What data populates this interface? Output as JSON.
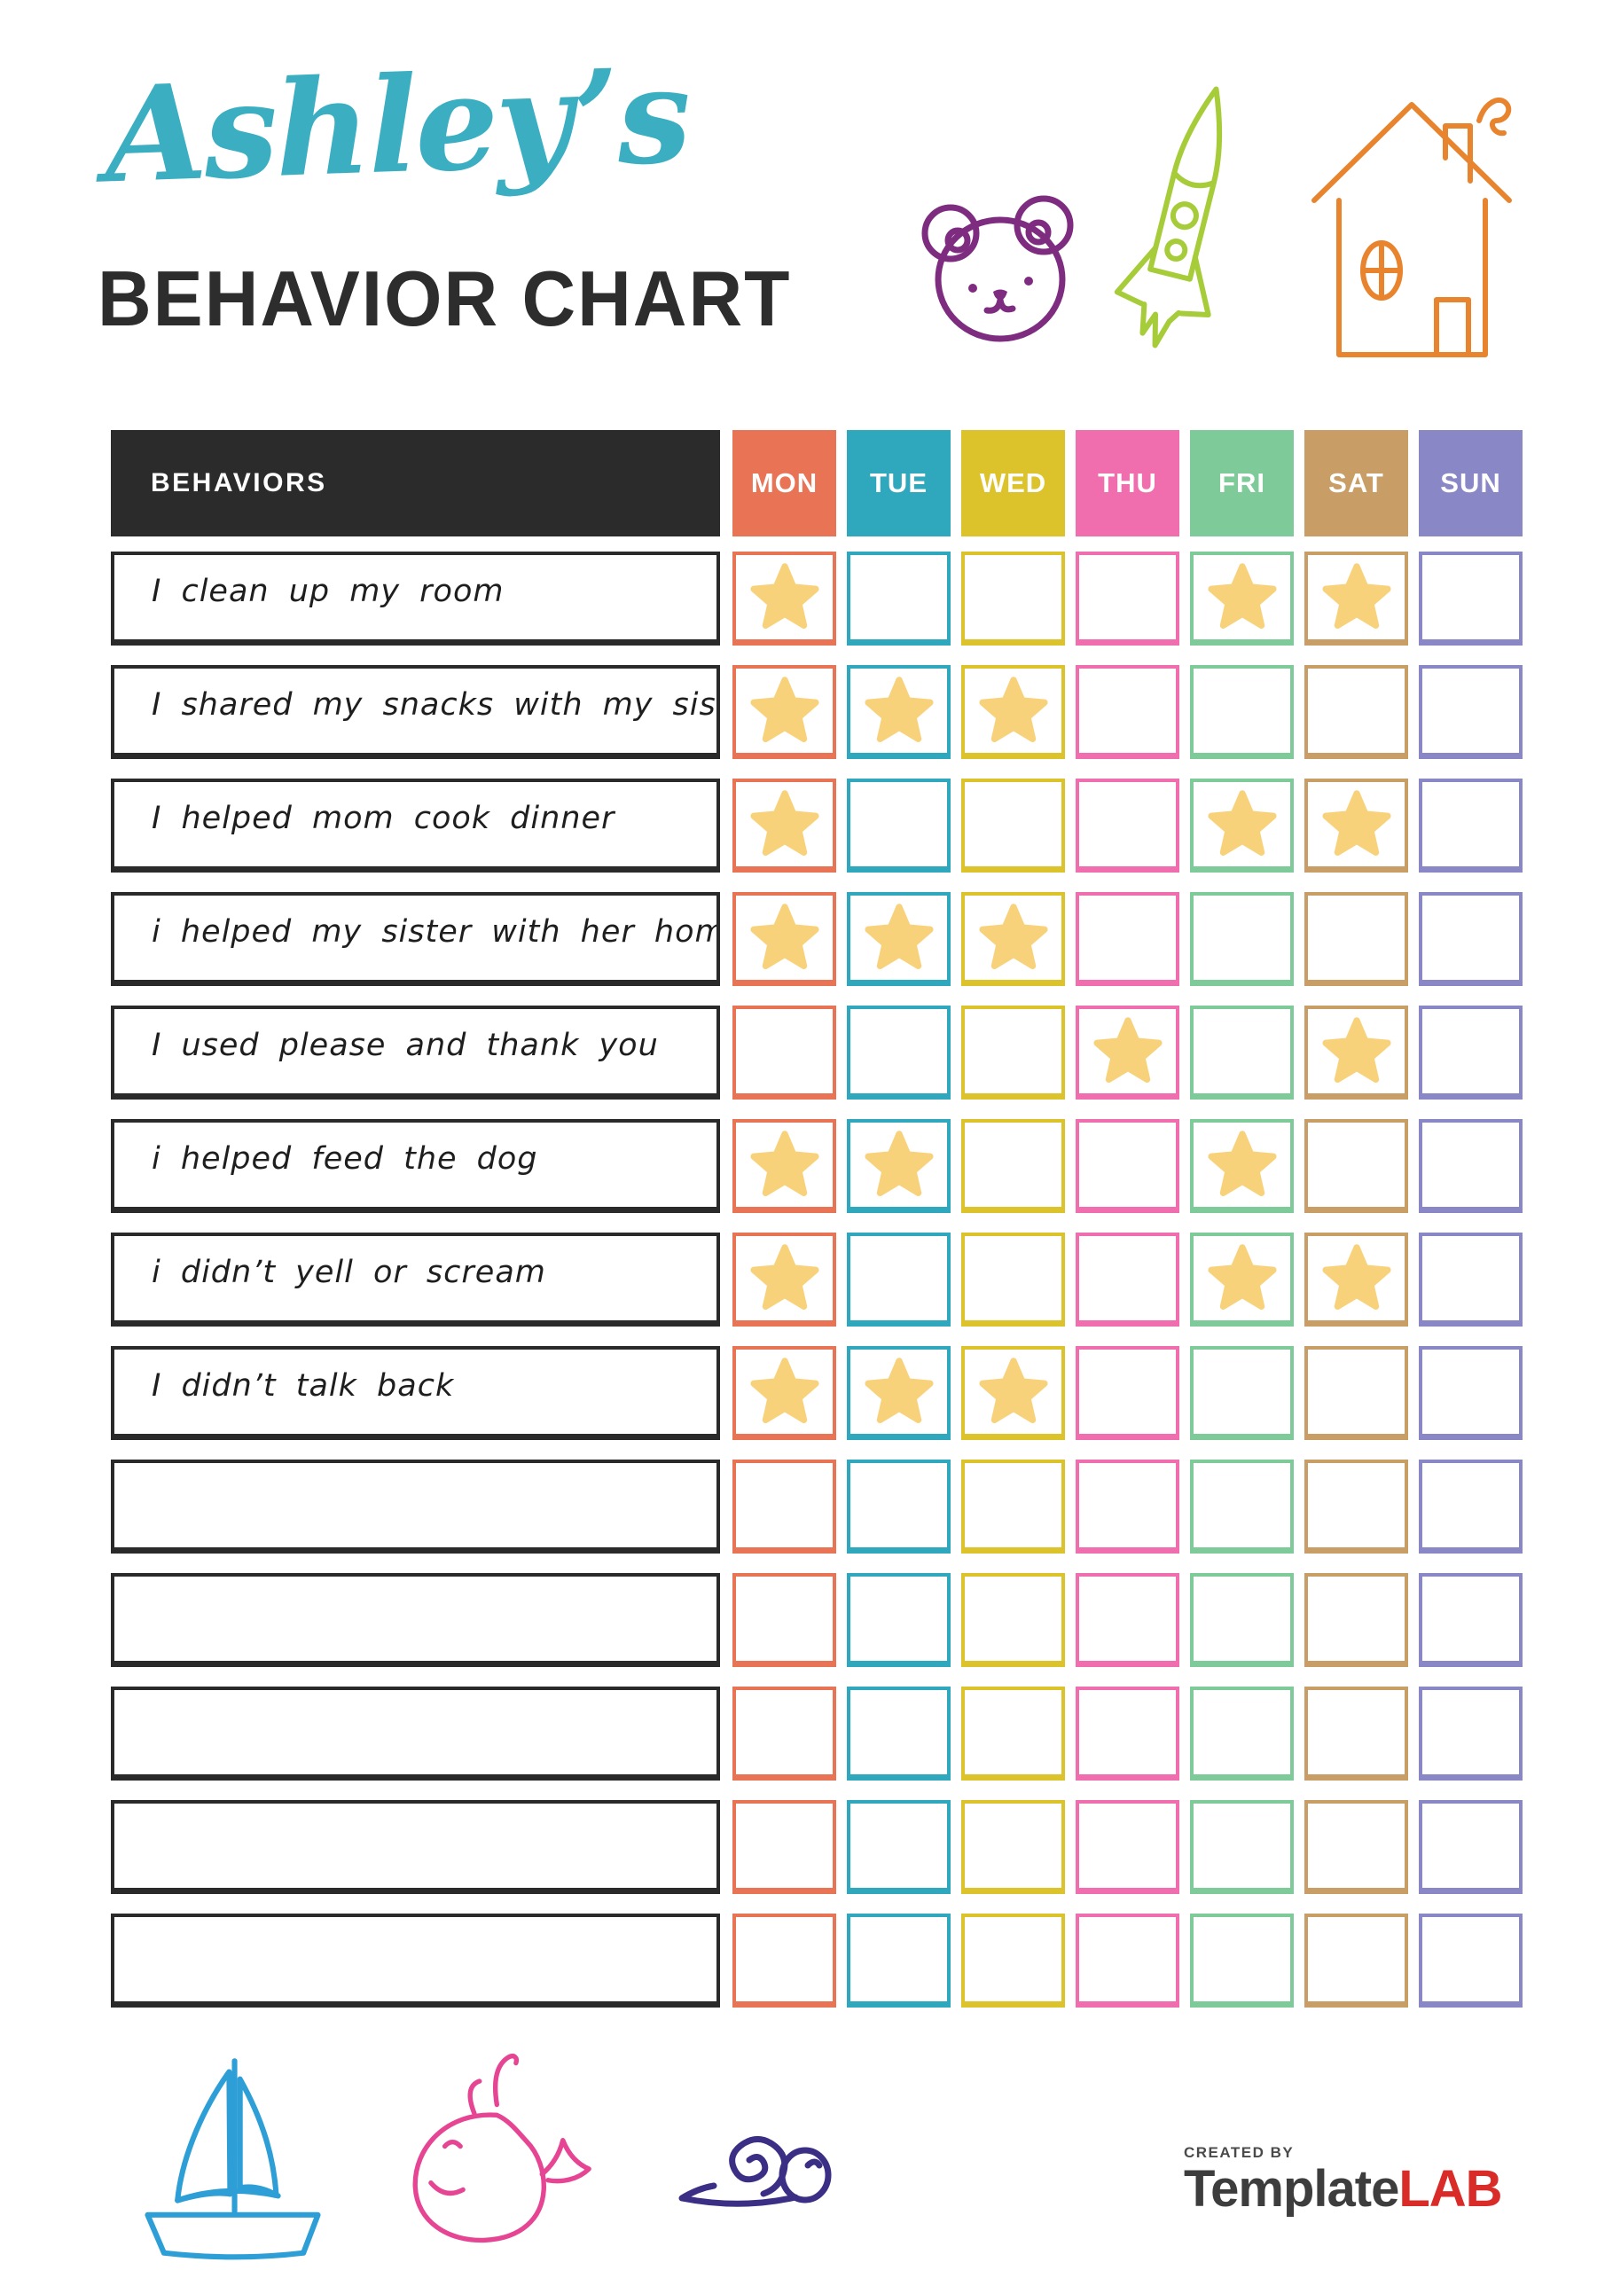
{
  "header": {
    "child_name": "Ashley’s",
    "title": "BEHAVIOR CHART",
    "name_color": "#3bafc1",
    "title_color": "#2d2d2d"
  },
  "icons": {
    "top": [
      "bear-icon",
      "rocket-icon",
      "house-icon"
    ],
    "bottom": [
      "sailboat-icon",
      "whale-icon",
      "snail-icon"
    ],
    "colors": {
      "bear": "#7e2c80",
      "rocket": "#a6cc39",
      "house": "#e8832e",
      "sailboat": "#2d9fd6",
      "whale": "#e64593",
      "snail": "#3a2e85"
    }
  },
  "chart": {
    "behaviors_header": "BEHAVIORS",
    "header_bg": "#2b2b2b",
    "star_color": "#f8d27b",
    "days": [
      {
        "label": "MON",
        "color": "#e97355"
      },
      {
        "label": "TUE",
        "color": "#2fa8bd"
      },
      {
        "label": "WED",
        "color": "#dcc32b"
      },
      {
        "label": "THU",
        "color": "#f06ead"
      },
      {
        "label": "FRI",
        "color": "#7ecb99"
      },
      {
        "label": "SAT",
        "color": "#c99e66"
      },
      {
        "label": "SUN",
        "color": "#8987c6"
      }
    ],
    "rows": [
      {
        "label": "I clean up my room",
        "stars": [
          1,
          0,
          0,
          0,
          1,
          1,
          0
        ]
      },
      {
        "label": "I shared my snacks with my sister",
        "stars": [
          1,
          1,
          1,
          0,
          0,
          0,
          0
        ]
      },
      {
        "label": "I helped mom cook dinner",
        "stars": [
          1,
          0,
          0,
          0,
          1,
          1,
          0
        ]
      },
      {
        "label": "i helped my sister with her homework",
        "stars": [
          1,
          1,
          1,
          0,
          0,
          0,
          0
        ]
      },
      {
        "label": "I used please and thank you",
        "stars": [
          0,
          0,
          0,
          1,
          0,
          1,
          0
        ]
      },
      {
        "label": "i helped feed the dog",
        "stars": [
          1,
          1,
          0,
          0,
          1,
          0,
          0
        ]
      },
      {
        "label": "i didn’t yell or scream",
        "stars": [
          1,
          0,
          0,
          0,
          1,
          1,
          0
        ]
      },
      {
        "label": "I didn’t talk back",
        "stars": [
          1,
          1,
          1,
          0,
          0,
          0,
          0
        ]
      },
      {
        "label": "",
        "stars": [
          0,
          0,
          0,
          0,
          0,
          0,
          0
        ]
      },
      {
        "label": "",
        "stars": [
          0,
          0,
          0,
          0,
          0,
          0,
          0
        ]
      },
      {
        "label": "",
        "stars": [
          0,
          0,
          0,
          0,
          0,
          0,
          0
        ]
      },
      {
        "label": "",
        "stars": [
          0,
          0,
          0,
          0,
          0,
          0,
          0
        ]
      },
      {
        "label": "",
        "stars": [
          0,
          0,
          0,
          0,
          0,
          0,
          0
        ]
      }
    ]
  },
  "footer": {
    "logo": {
      "created_by": "CREATED BY",
      "brand_dark": "Template",
      "brand_accent": "LAB",
      "accent_color": "#d92b27"
    }
  }
}
